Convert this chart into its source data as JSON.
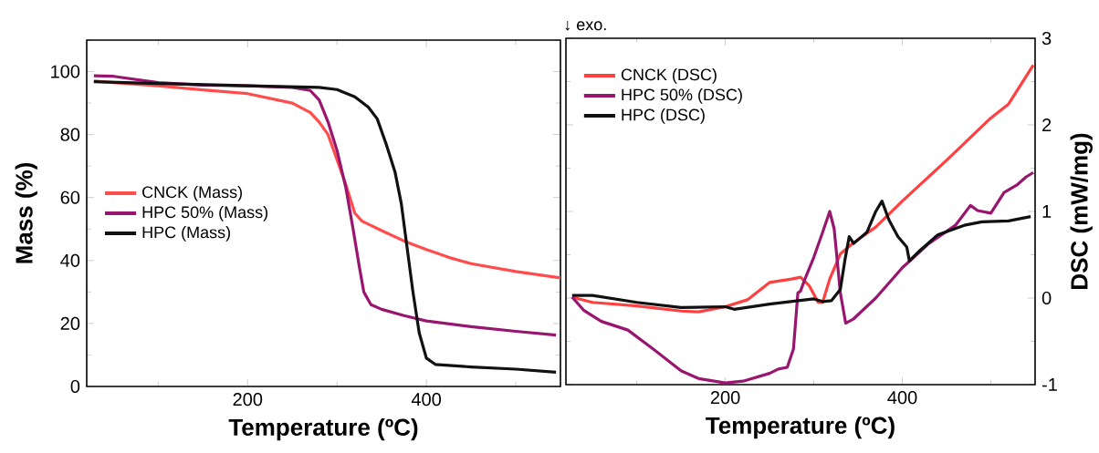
{
  "chart_data": [
    {
      "type": "line",
      "xlabel": "Temperature (ºC)",
      "ylabel": "Mass (%)",
      "xlim": [
        20,
        550
      ],
      "xticks": [
        200,
        400
      ],
      "ylim": [
        0,
        110
      ],
      "yticks": [
        0,
        20,
        40,
        60,
        80,
        100
      ],
      "grid": false,
      "legend": "left",
      "series": [
        {
          "name": "CNCK (Mass)",
          "color": "#ff4d4d",
          "x": [
            28,
            50,
            100,
            150,
            200,
            250,
            270,
            280,
            290,
            300,
            310,
            320,
            328,
            350,
            375,
            400,
            425,
            450,
            500,
            550
          ],
          "values": [
            97,
            96.5,
            95.5,
            94.2,
            93,
            90,
            87,
            84,
            80,
            72,
            64,
            55,
            52.5,
            49.5,
            46.2,
            43.5,
            41,
            39,
            36.5,
            34.5
          ]
        },
        {
          "name": "HPC 50% (Mass)",
          "color": "#99166f",
          "x": [
            28,
            50,
            100,
            150,
            200,
            250,
            270,
            280,
            290,
            300,
            310,
            318,
            325,
            330,
            338,
            350,
            375,
            400,
            450,
            500,
            545
          ],
          "values": [
            98.7,
            98.5,
            96.5,
            95.7,
            95.5,
            95,
            94,
            91,
            84,
            75,
            63,
            50,
            38,
            30,
            26,
            24.5,
            22.5,
            20.8,
            19,
            17.5,
            16.3
          ]
        },
        {
          "name": "HPC (Mass)",
          "color": "#111111",
          "x": [
            28,
            100,
            200,
            280,
            300,
            320,
            335,
            345,
            355,
            365,
            372,
            378,
            385,
            392,
            400,
            410,
            450,
            500,
            545
          ],
          "values": [
            96.8,
            96.2,
            95.5,
            95,
            94.3,
            92,
            88.7,
            85,
            77,
            68,
            58,
            45,
            30,
            17,
            9,
            7,
            6.2,
            5.5,
            4.5
          ]
        }
      ]
    },
    {
      "type": "line",
      "xlabel": "Temperature (ºC)",
      "y2label": "DSC (mW/mg)",
      "xlim": [
        20,
        550
      ],
      "xticks": [
        200,
        400
      ],
      "y2lim": [
        -1,
        3
      ],
      "y2ticks": [
        -1,
        0,
        1,
        2,
        3
      ],
      "grid": false,
      "legend": "top left",
      "annotations": [
        "↓ exo."
      ],
      "series": [
        {
          "name": "CNCK (DSC)",
          "color": "#ff4040",
          "axis": "y2",
          "x": [
            27,
            50,
            100,
            150,
            170,
            200,
            225,
            250,
            275,
            285,
            295,
            305,
            310,
            318,
            330,
            345,
            370,
            400,
            450,
            500,
            520,
            548
          ],
          "values": [
            0.01,
            -0.05,
            -0.09,
            -0.15,
            -0.16,
            -0.1,
            -0.02,
            0.18,
            0.22,
            0.24,
            0.14,
            -0.05,
            -0.05,
            0.22,
            0.51,
            0.64,
            0.82,
            1.12,
            1.59,
            2.08,
            2.24,
            2.69
          ]
        },
        {
          "name": "HPC 50%  (DSC)",
          "color": "#99166f",
          "axis": "y2",
          "x": [
            27,
            40,
            60,
            90,
            120,
            150,
            170,
            200,
            220,
            250,
            260,
            270,
            277,
            282,
            285,
            290,
            300,
            310,
            318,
            323,
            330,
            336,
            345,
            370,
            400,
            430,
            460,
            477,
            485,
            500,
            515,
            530,
            540,
            548
          ],
          "values": [
            0.01,
            -0.14,
            -0.27,
            -0.37,
            -0.6,
            -0.84,
            -0.93,
            -0.98,
            -0.96,
            -0.87,
            -0.82,
            -0.8,
            -0.59,
            0.06,
            0.08,
            0.22,
            0.47,
            0.76,
            1.0,
            0.8,
            0.06,
            -0.29,
            -0.24,
            0.0,
            0.35,
            0.63,
            0.84,
            1.07,
            1.01,
            0.98,
            1.22,
            1.31,
            1.4,
            1.45
          ]
        },
        {
          "name": "HPC (DSC)",
          "color": "#111111",
          "axis": "y2",
          "x": [
            27,
            50,
            100,
            150,
            200,
            210,
            250,
            300,
            310,
            320,
            330,
            335,
            340,
            345,
            360,
            370,
            377,
            385,
            395,
            405,
            408,
            420,
            440,
            470,
            490,
            520,
            545
          ],
          "values": [
            0.03,
            0.03,
            -0.05,
            -0.11,
            -0.1,
            -0.13,
            -0.07,
            -0.01,
            -0.04,
            -0.03,
            0.1,
            0.43,
            0.71,
            0.63,
            0.76,
            1.0,
            1.12,
            0.9,
            0.71,
            0.59,
            0.43,
            0.55,
            0.73,
            0.84,
            0.88,
            0.89,
            0.94
          ]
        }
      ]
    }
  ]
}
